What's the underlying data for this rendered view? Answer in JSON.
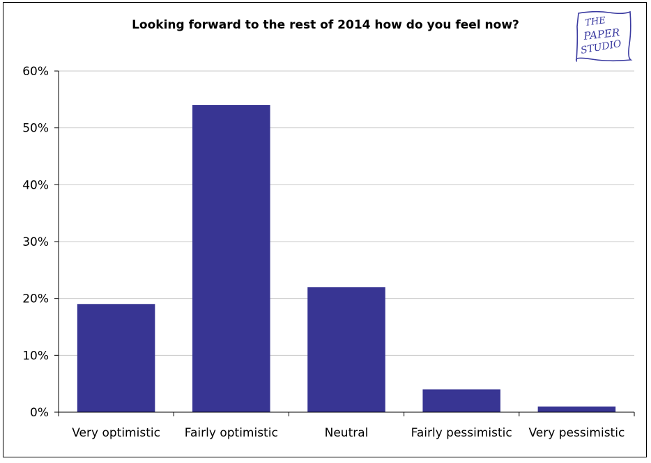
{
  "chart_data": {
    "type": "bar",
    "title": "Looking forward to the rest of 2014 how do you feel now?",
    "categories": [
      "Very optimistic",
      "Fairly optimistic",
      "Neutral",
      "Fairly pessimistic",
      "Very pessimistic"
    ],
    "values": [
      19,
      54,
      22,
      4,
      1
    ],
    "value_unit": "%",
    "ylim": [
      0,
      60
    ],
    "yticks": [
      "0%",
      "10%",
      "20%",
      "30%",
      "40%",
      "50%",
      "60%"
    ],
    "grid": true,
    "legend": "none",
    "bar_color": "#383593"
  },
  "logo": {
    "name": "the-paper-studio-logo",
    "text": "THE PAPER STUDIO"
  }
}
